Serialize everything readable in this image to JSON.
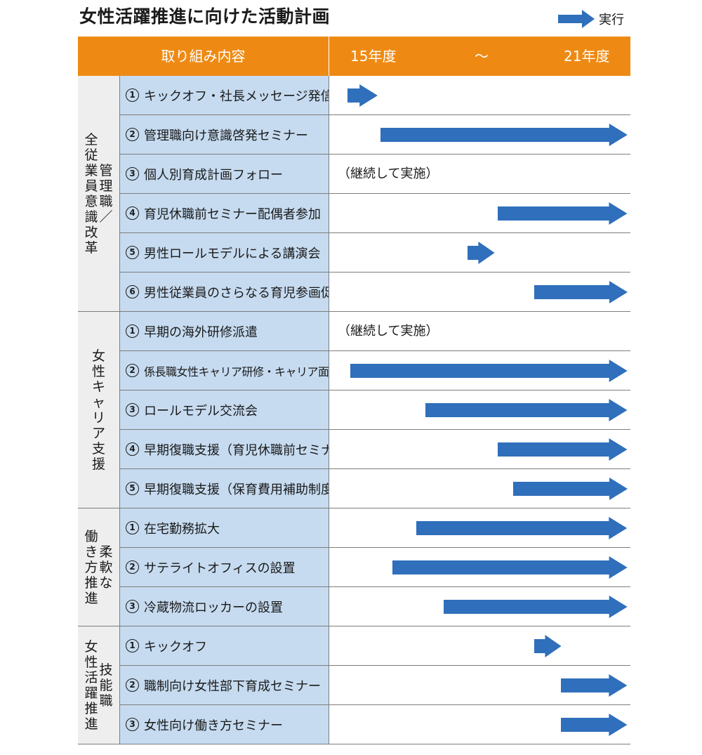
{
  "title": "女性活躍推進に向けた活動計画",
  "legend": {
    "label": "実行",
    "arrow_color": "#2f6fbb"
  },
  "colors": {
    "header_bg": "#ee8a13",
    "item_bg": "#c6dbf0",
    "group_bg": "#eeeeee",
    "arrow": "#2f6fbb"
  },
  "header": {
    "content": "取り組み内容",
    "start_year": "15年度",
    "range_sep": "～",
    "end_year": "21年度"
  },
  "groups": [
    {
      "label_columns": [
        "管理職／",
        "全従業員意識改革"
      ],
      "items": [
        {
          "num": "1",
          "label": "キックオフ・社長メッセージ発信",
          "arrow": {
            "start": 0.06,
            "end": 0.16
          }
        },
        {
          "num": "2",
          "label": "管理職向け意識啓発セミナー",
          "arrow": {
            "start": 0.17,
            "end": 0.99
          }
        },
        {
          "num": "3",
          "label": "個人別育成計画フォロー",
          "note": "（継続して実施）"
        },
        {
          "num": "4",
          "label": "育児休職前セミナー配偶者参加",
          "arrow": {
            "start": 0.56,
            "end": 0.99
          }
        },
        {
          "num": "5",
          "label": "男性ロールモデルによる講演会",
          "arrow": {
            "start": 0.46,
            "end": 0.55
          }
        },
        {
          "num": "6",
          "label": "男性従業員のさらなる育児参画促進",
          "arrow": {
            "start": 0.68,
            "end": 0.99
          }
        }
      ]
    },
    {
      "label_columns": [
        "女性キャリア支援"
      ],
      "items": [
        {
          "num": "1",
          "label": "早期の海外研修派遣",
          "note": "（継続して実施）"
        },
        {
          "num": "2",
          "label": "係長職女性キャリア研修・キャリア面談研修",
          "arrow": {
            "start": 0.07,
            "end": 0.99
          }
        },
        {
          "num": "3",
          "label": "ロールモデル交流会",
          "arrow": {
            "start": 0.32,
            "end": 0.99
          }
        },
        {
          "num": "4",
          "label": "早期復職支援（育児休職前セミナー）",
          "arrow": {
            "start": 0.56,
            "end": 0.99
          }
        },
        {
          "num": "5",
          "label": "早期復職支援（保育費用補助制度）",
          "arrow": {
            "start": 0.61,
            "end": 0.99
          }
        }
      ]
    },
    {
      "label_columns": [
        "柔軟な",
        "働き方推進"
      ],
      "items": [
        {
          "num": "1",
          "label": "在宅勤務拡大",
          "arrow": {
            "start": 0.29,
            "end": 0.99
          }
        },
        {
          "num": "2",
          "label": "サテライトオフィスの設置",
          "arrow": {
            "start": 0.21,
            "end": 0.99
          }
        },
        {
          "num": "3",
          "label": "冷蔵物流ロッカーの設置",
          "arrow": {
            "start": 0.38,
            "end": 0.99
          }
        }
      ]
    },
    {
      "label_columns": [
        "技能職",
        "女性活躍推進"
      ],
      "items": [
        {
          "num": "1",
          "label": "キックオフ",
          "arrow": {
            "start": 0.68,
            "end": 0.77
          }
        },
        {
          "num": "2",
          "label": "職制向け女性部下育成セミナー",
          "arrow": {
            "start": 0.77,
            "end": 0.99
          }
        },
        {
          "num": "3",
          "label": "女性向け働き方セミナー",
          "arrow": {
            "start": 0.77,
            "end": 0.99
          }
        }
      ]
    }
  ]
}
